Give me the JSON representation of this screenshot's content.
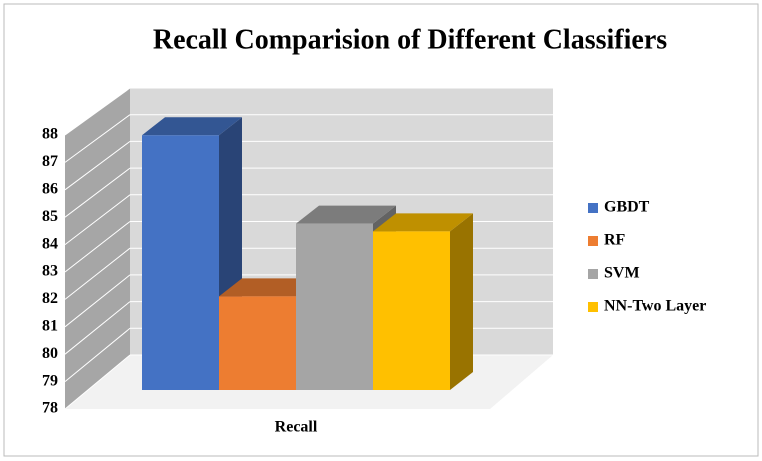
{
  "chart_data": {
    "type": "bar3d",
    "title": "Recall Comparision of Different Classifiers",
    "categories": [
      "Recall"
    ],
    "series": [
      {
        "name": "GBDT",
        "color": "#4472c4",
        "values": [
          87.8
        ]
      },
      {
        "name": "RF",
        "color": "#ed7d31",
        "values": [
          81.6
        ]
      },
      {
        "name": "SVM",
        "color": "#a5a5a5",
        "values": [
          84.4
        ]
      },
      {
        "name": "NN-Two Layer",
        "color": "#ffc000",
        "values": [
          84.1
        ]
      }
    ],
    "ylim": [
      78,
      88
    ],
    "yticks": [
      78,
      79,
      80,
      81,
      82,
      83,
      84,
      85,
      86,
      87,
      88
    ],
    "grid": true,
    "legend": "right"
  }
}
